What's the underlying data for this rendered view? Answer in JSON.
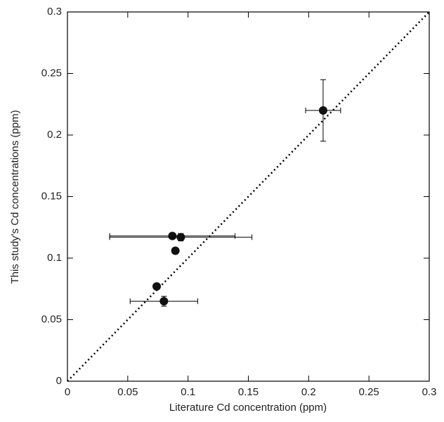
{
  "chart_data": {
    "type": "scatter",
    "x_label": "Literature Cd concentration (ppm)",
    "y_label": "This study's Cd concentrations (ppm)",
    "xlim": [
      0,
      0.3
    ],
    "ylim": [
      0,
      0.3
    ],
    "xticks": [
      0,
      0.05,
      0.1,
      0.15,
      0.2,
      0.25,
      0.3
    ],
    "yticks": [
      0,
      0.05,
      0.1,
      0.15,
      0.2,
      0.25,
      0.3
    ],
    "color": "#111111",
    "x": [
      0.212,
      0.087,
      0.094,
      0.0895,
      0.074,
      0.08
    ],
    "values": [
      0.22,
      0.118,
      0.117,
      0.106,
      0.077,
      0.065
    ],
    "x_err": [
      0.0145,
      0.052,
      0.059,
      null,
      null,
      0.028
    ],
    "y_err": [
      0.025,
      null,
      0.003,
      null,
      0.002,
      0.004
    ]
  }
}
